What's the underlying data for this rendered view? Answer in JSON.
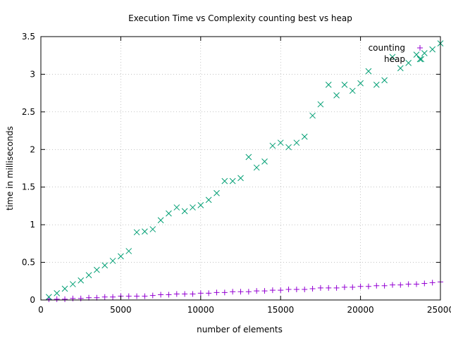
{
  "chart_data": {
    "type": "scatter",
    "title": "Execution Time vs Complexity counting best vs heap",
    "xlabel": "number of elements",
    "ylabel": "time in milliseconds",
    "xlim": [
      0,
      25000
    ],
    "ylim": [
      0,
      3.5
    ],
    "x_ticks": [
      0,
      5000,
      10000,
      15000,
      20000,
      25000
    ],
    "y_ticks": [
      0,
      0.5,
      1,
      1.5,
      2,
      2.5,
      3,
      3.5
    ],
    "grid": true,
    "legend_position": "top-right",
    "series": [
      {
        "name": "counting",
        "marker": "plus",
        "color": "#9400d3",
        "x": [
          500,
          1000,
          1500,
          2000,
          2500,
          3000,
          3500,
          4000,
          4500,
          5000,
          5500,
          6000,
          6500,
          7000,
          7500,
          8000,
          8500,
          9000,
          9500,
          10000,
          10500,
          11000,
          11500,
          12000,
          12500,
          13000,
          13500,
          14000,
          14500,
          15000,
          15500,
          16000,
          16500,
          17000,
          17500,
          18000,
          18500,
          19000,
          19500,
          20000,
          20500,
          21000,
          21500,
          22000,
          22500,
          23000,
          23500,
          24000,
          24500,
          25000
        ],
        "y": [
          0.01,
          0.01,
          0.01,
          0.02,
          0.02,
          0.03,
          0.03,
          0.04,
          0.04,
          0.05,
          0.05,
          0.05,
          0.05,
          0.06,
          0.07,
          0.07,
          0.08,
          0.08,
          0.08,
          0.09,
          0.09,
          0.1,
          0.1,
          0.11,
          0.11,
          0.11,
          0.12,
          0.12,
          0.13,
          0.13,
          0.14,
          0.14,
          0.14,
          0.15,
          0.16,
          0.16,
          0.16,
          0.17,
          0.17,
          0.18,
          0.18,
          0.19,
          0.19,
          0.2,
          0.2,
          0.21,
          0.21,
          0.22,
          0.23,
          0.24
        ]
      },
      {
        "name": "heap",
        "marker": "cross",
        "color": "#009e73",
        "x": [
          500,
          1000,
          1500,
          2000,
          2500,
          3000,
          3500,
          4000,
          4500,
          5000,
          5500,
          6000,
          6500,
          7000,
          7500,
          8000,
          8500,
          9000,
          9500,
          10000,
          10500,
          11000,
          11500,
          12000,
          12500,
          13000,
          13500,
          14000,
          14500,
          15000,
          15500,
          16000,
          16500,
          17000,
          17500,
          18000,
          18500,
          19000,
          19500,
          20000,
          20500,
          21000,
          21500,
          22000,
          22500,
          23000,
          23500,
          23800,
          24000,
          24500,
          25000
        ],
        "y": [
          0.04,
          0.09,
          0.15,
          0.21,
          0.26,
          0.33,
          0.4,
          0.46,
          0.52,
          0.58,
          0.65,
          0.9,
          0.91,
          0.94,
          1.06,
          1.15,
          1.23,
          1.18,
          1.23,
          1.26,
          1.33,
          1.42,
          1.58,
          1.58,
          1.62,
          1.9,
          1.76,
          1.84,
          2.05,
          2.09,
          2.03,
          2.09,
          2.17,
          2.45,
          2.6,
          2.86,
          2.72,
          2.86,
          2.78,
          2.88,
          3.04,
          2.86,
          2.92,
          3.23,
          3.08,
          3.15,
          3.26,
          3.2,
          3.28,
          3.33,
          3.41
        ]
      }
    ]
  }
}
